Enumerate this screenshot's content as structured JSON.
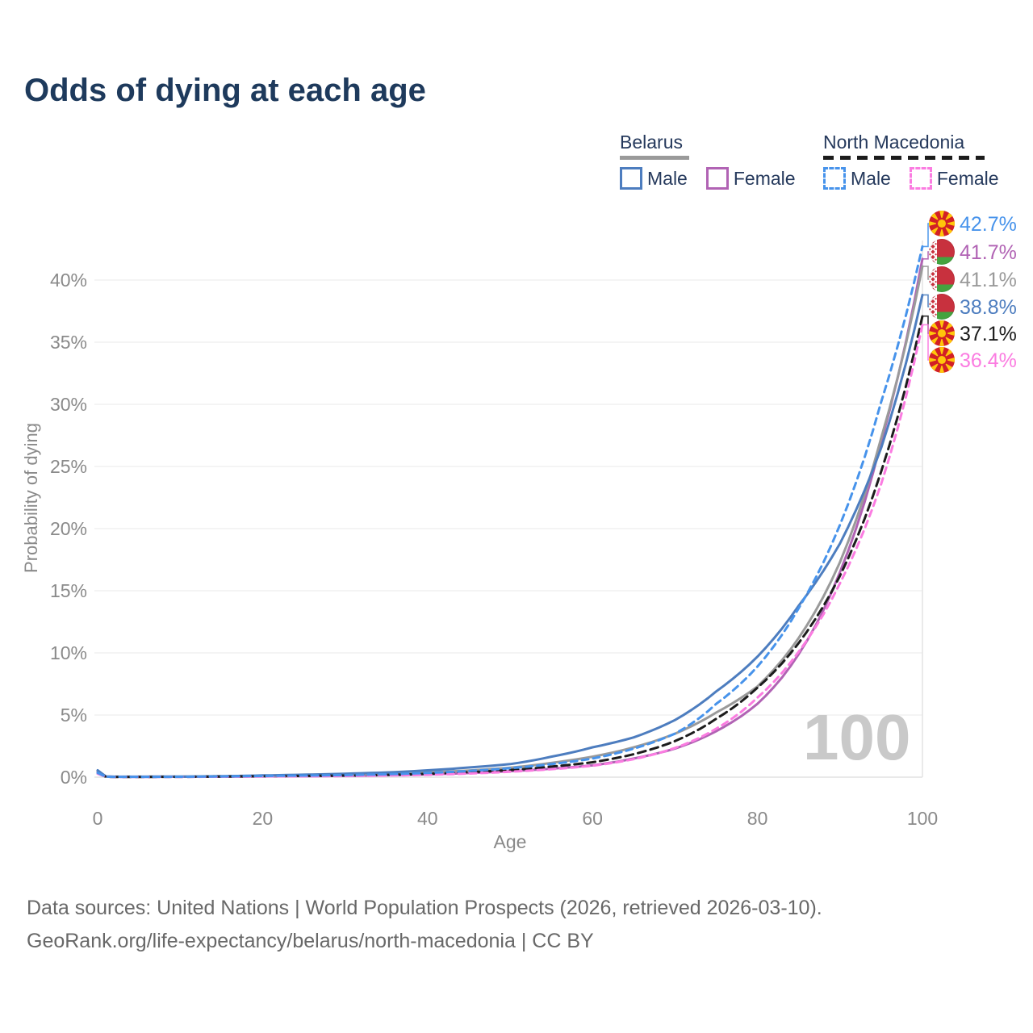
{
  "title": "Odds of dying at each age",
  "legend": {
    "groups": [
      {
        "label": "Belarus",
        "overall_line_color": "#9a9a9a",
        "overall_line_dashed": false,
        "items": [
          {
            "label": "Male",
            "color": "#4d7dbf",
            "dashed": false
          },
          {
            "label": "Female",
            "color": "#b163b4",
            "dashed": false
          }
        ]
      },
      {
        "label": "North Macedonia",
        "overall_line_color": "#1c1c1c",
        "overall_line_dashed": true,
        "items": [
          {
            "label": "Male",
            "color": "#4793eb",
            "dashed": true
          },
          {
            "label": "Female",
            "color": "#fb7ce1",
            "dashed": true
          }
        ]
      }
    ]
  },
  "watermark": "100",
  "footer": {
    "line1": "Data sources: United Nations | World Population Prospects (2026, retrieved 2026-03-10).",
    "line2": "GeoRank.org/life-expectancy/belarus/north-macedonia | CC BY"
  },
  "colors": {
    "title_text": "#1e3a5c",
    "legend_text": "#25395c",
    "axis_text": "#8a8a8a",
    "gridline": "#ededed",
    "zero_line": "#e2e2e2",
    "age_cursor_line": "#e4e4e4",
    "watermark_text": "#c9c9c9",
    "footer_text": "#686868"
  },
  "chart_data": {
    "type": "line",
    "title": "Odds of dying at each age",
    "xlabel": "Age",
    "ylabel": "Probability of dying",
    "x_ticks": [
      0,
      20,
      40,
      60,
      80,
      100
    ],
    "y_tick_labels": [
      "0%",
      "5%",
      "10%",
      "15%",
      "20%",
      "25%",
      "30%",
      "35%",
      "40%"
    ],
    "y_tick_values": [
      0,
      5,
      10,
      15,
      20,
      25,
      30,
      35,
      40
    ],
    "xlim": [
      0,
      100
    ],
    "ylim_pct": [
      0,
      44
    ],
    "grid": "horizontal-only",
    "legend_position": "top-right",
    "age_cursor": 100,
    "ages": [
      0,
      1,
      2,
      5,
      10,
      15,
      20,
      25,
      30,
      35,
      40,
      45,
      50,
      55,
      60,
      65,
      70,
      75,
      80,
      85,
      90,
      95,
      100
    ],
    "series": [
      {
        "id": "belarus-female",
        "name": "Belarus Female",
        "country": "Belarus",
        "sex": "Female",
        "color": "#b163b4",
        "dashed": false,
        "flag_icon": "by-flag-icon",
        "end_label": "41.7%",
        "values": [
          0.45,
          0.05,
          0.03,
          0.03,
          0.03,
          0.04,
          0.06,
          0.08,
          0.11,
          0.16,
          0.23,
          0.33,
          0.48,
          0.68,
          0.95,
          1.5,
          2.3,
          3.7,
          5.9,
          9.9,
          16.5,
          27.0,
          41.7
        ]
      },
      {
        "id": "belarus-overall",
        "name": "Belarus",
        "country": "Belarus",
        "sex": "Both",
        "color": "#9a9a9a",
        "dashed": false,
        "flag_icon": "by-flag-icon",
        "end_label": "41.1%",
        "values": [
          0.5,
          0.055,
          0.035,
          0.035,
          0.04,
          0.06,
          0.1,
          0.14,
          0.2,
          0.27,
          0.39,
          0.54,
          0.76,
          1.15,
          1.65,
          2.4,
          3.5,
          5.2,
          7.3,
          11.2,
          17.3,
          27.3,
          41.1
        ]
      },
      {
        "id": "belarus-male",
        "name": "Belarus Male",
        "country": "Belarus",
        "sex": "Male",
        "color": "#4d7dbf",
        "dashed": false,
        "flag_icon": "by-flag-icon",
        "end_label": "38.8%",
        "values": [
          0.55,
          0.06,
          0.04,
          0.04,
          0.05,
          0.08,
          0.14,
          0.2,
          0.28,
          0.38,
          0.55,
          0.78,
          1.05,
          1.65,
          2.4,
          3.2,
          4.6,
          6.9,
          9.7,
          13.8,
          18.8,
          26.5,
          38.8
        ]
      },
      {
        "id": "nm-overall",
        "name": "North Macedonia",
        "country": "North Macedonia",
        "sex": "Both",
        "color": "#1c1c1c",
        "dashed": true,
        "flag_icon": "nm-flag-icon",
        "end_label": "37.1%",
        "values": [
          0.3,
          0.035,
          0.02,
          0.02,
          0.025,
          0.05,
          0.08,
          0.1,
          0.13,
          0.18,
          0.27,
          0.4,
          0.58,
          0.85,
          1.2,
          1.85,
          2.9,
          4.7,
          7.2,
          10.8,
          16.2,
          24.6,
          37.1
        ]
      },
      {
        "id": "nm-female",
        "name": "North Macedonia Female",
        "country": "North Macedonia",
        "sex": "Female",
        "color": "#fb7ce1",
        "dashed": true,
        "flag_icon": "nm-flag-icon",
        "end_label": "36.4%",
        "values": [
          0.28,
          0.03,
          0.018,
          0.018,
          0.02,
          0.04,
          0.06,
          0.07,
          0.09,
          0.13,
          0.19,
          0.29,
          0.44,
          0.64,
          0.92,
          1.45,
          2.35,
          3.9,
          6.4,
          10.1,
          15.6,
          23.6,
          36.4
        ]
      },
      {
        "id": "nm-male",
        "name": "North Macedonia Male",
        "country": "North Macedonia",
        "sex": "Male",
        "color": "#4793eb",
        "dashed": true,
        "flag_icon": "nm-flag-icon",
        "end_label": "42.7%",
        "values": [
          0.35,
          0.04,
          0.025,
          0.025,
          0.03,
          0.06,
          0.1,
          0.13,
          0.17,
          0.24,
          0.34,
          0.5,
          0.72,
          1.05,
          1.5,
          2.3,
          3.5,
          5.9,
          8.9,
          13.6,
          20.3,
          30.2,
          42.7
        ]
      }
    ],
    "end_labels": [
      {
        "value": "42.7%",
        "series": "North Macedonia Male",
        "flag_icon": "nm-flag-icon"
      },
      {
        "value": "41.7%",
        "series": "Belarus Female",
        "flag_icon": "by-flag-icon"
      },
      {
        "value": "41.1%",
        "series": "Belarus",
        "flag_icon": "by-flag-icon"
      },
      {
        "value": "38.8%",
        "series": "Belarus Male",
        "flag_icon": "by-flag-icon"
      },
      {
        "value": "37.1%",
        "series": "North Macedonia",
        "flag_icon": "nm-flag-icon"
      },
      {
        "value": "36.4%",
        "series": "North Macedonia Female",
        "flag_icon": "nm-flag-icon"
      }
    ],
    "flag_colors": {
      "belarus": {
        "red": "#c8313e",
        "green": "#44a33f",
        "white": "#ffffff"
      },
      "north_macedonia": {
        "red": "#d21f26",
        "yellow": "#ffc60b"
      }
    }
  }
}
